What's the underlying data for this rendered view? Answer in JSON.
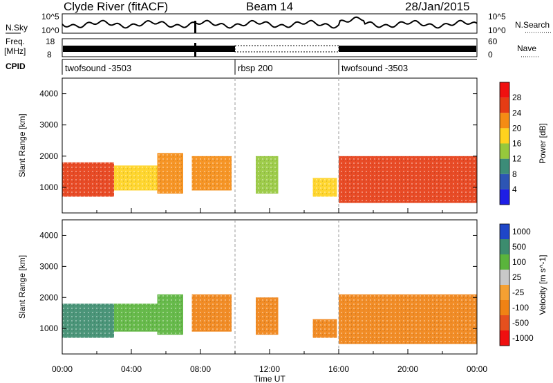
{
  "header": {
    "title": "Clyde River (fitACF)",
    "beam": "Beam 14",
    "date": "28/Jan/2015"
  },
  "status_panels": {
    "left_labels": [
      "N.Sky",
      "Freq.",
      "[MHz]",
      "CPID"
    ],
    "right_labels": [
      "N.Search",
      "Nave"
    ],
    "noise_axis": {
      "left_ticks": [
        "10^5",
        "10^0"
      ],
      "right_ticks": [
        "10^5",
        "10^0"
      ]
    },
    "freq_axis": {
      "left_ticks": [
        "18",
        "8"
      ],
      "right_ticks": [
        "60",
        "0"
      ]
    },
    "cpid_segments": [
      {
        "label": "twofsound -3503",
        "start_hour": 0,
        "end_hour": 10
      },
      {
        "label": "rbsp 200",
        "start_hour": 10,
        "end_hour": 16
      },
      {
        "label": "twofsound -3503",
        "start_hour": 16,
        "end_hour": 24
      }
    ]
  },
  "chart_data": [
    {
      "type": "heatmap",
      "panel": "power",
      "xlabel": "Time UT",
      "ylabel": "Slant Range [km]",
      "xlim": [
        0,
        24
      ],
      "ylim": [
        180,
        4500
      ],
      "yticks": [
        1000,
        2000,
        3000,
        4000
      ],
      "colorbar": {
        "label": "Power [dB]",
        "ticks": [
          4,
          8,
          12,
          16,
          20,
          24,
          28
        ],
        "range": [
          0,
          32
        ],
        "colors": [
          "#1e1ee6",
          "#2d55b4",
          "#3c8c78",
          "#96c83c",
          "#ffd21e",
          "#f58c14",
          "#e63c14",
          "#f01010"
        ]
      },
      "regions": [
        {
          "t0": 0.0,
          "t1": 3.0,
          "r0": 700,
          "r1": 1800,
          "value": 24
        },
        {
          "t0": 3.0,
          "t1": 5.5,
          "r0": 900,
          "r1": 1700,
          "value": 16
        },
        {
          "t0": 5.5,
          "t1": 7.0,
          "r0": 800,
          "r1": 2100,
          "value": 22
        },
        {
          "t0": 7.5,
          "t1": 9.8,
          "r0": 900,
          "r1": 2000,
          "value": 20
        },
        {
          "t0": 11.2,
          "t1": 12.5,
          "r0": 800,
          "r1": 2000,
          "value": 14
        },
        {
          "t0": 14.5,
          "t1": 15.9,
          "r0": 700,
          "r1": 1300,
          "value": 18
        },
        {
          "t0": 16.0,
          "t1": 24.0,
          "r0": 500,
          "r1": 2000,
          "value": 26
        }
      ]
    },
    {
      "type": "heatmap",
      "panel": "velocity",
      "xlabel": "Time UT",
      "ylabel": "Slant Range [km]",
      "xlim": [
        0,
        24
      ],
      "ylim": [
        180,
        4500
      ],
      "xticks": [
        "00:00",
        "04:00",
        "08:00",
        "12:00",
        "16:00",
        "20:00",
        "00:00"
      ],
      "yticks": [
        1000,
        2000,
        3000,
        4000
      ],
      "colorbar": {
        "label": "Velocity [m s^-1]",
        "ticks": [
          "1000",
          "500",
          "100",
          "25",
          "-25",
          "-100",
          "-500",
          "-1000"
        ],
        "colors": [
          "#1e46c8",
          "#3c8c6e",
          "#5ab43c",
          "#c8c8c8",
          "#f5a032",
          "#f08214",
          "#e6501e",
          "#f01010"
        ]
      },
      "regions": [
        {
          "t0": 0.0,
          "t1": 3.0,
          "r0": 700,
          "r1": 1800,
          "value": 500
        },
        {
          "t0": 3.0,
          "t1": 5.5,
          "r0": 900,
          "r1": 1800,
          "value": 100
        },
        {
          "t0": 5.5,
          "t1": 7.0,
          "r0": 800,
          "r1": 2100,
          "value": 100
        },
        {
          "t0": 7.5,
          "t1": 9.8,
          "r0": 900,
          "r1": 2100,
          "value": -100
        },
        {
          "t0": 11.2,
          "t1": 12.5,
          "r0": 800,
          "r1": 2000,
          "value": -100
        },
        {
          "t0": 14.5,
          "t1": 15.9,
          "r0": 700,
          "r1": 1300,
          "value": -100
        },
        {
          "t0": 16.0,
          "t1": 24.0,
          "r0": 500,
          "r1": 2100,
          "value": -100
        }
      ]
    }
  ]
}
